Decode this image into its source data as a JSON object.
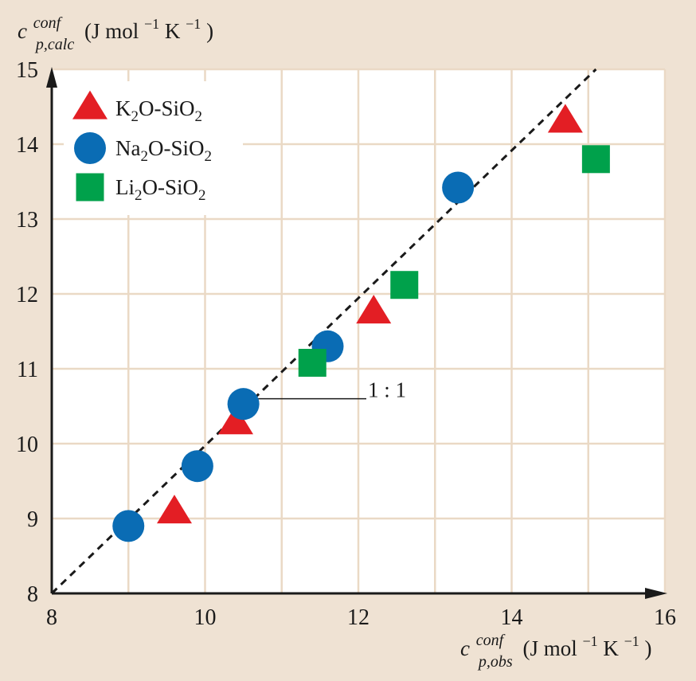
{
  "chart_data": {
    "type": "scatter",
    "xlabel": {
      "base": "c",
      "sup": "conf",
      "sub": "p,obs",
      "units": "(J mol",
      "exp1": "−1",
      "mid": " K",
      "exp2": "−1",
      "close": ")"
    },
    "ylabel": {
      "base": "c",
      "sup": "conf",
      "sub": "p,calc",
      "units": "(J mol",
      "exp1": "−1",
      "mid": " K",
      "exp2": "−1",
      "close": ")"
    },
    "xlim": [
      8,
      16
    ],
    "ylim": [
      8,
      15
    ],
    "x_ticks": [
      "8",
      "10",
      "12",
      "14",
      "16"
    ],
    "y_ticks": [
      "8",
      "9",
      "10",
      "11",
      "12",
      "13",
      "14",
      "15"
    ],
    "grid": true,
    "legend_position": "top-left",
    "reference_line": {
      "label": "1 : 1",
      "from": [
        8,
        8
      ],
      "to": [
        15.1,
        15
      ]
    },
    "series": [
      {
        "name": "K2O-SiO2",
        "legend": {
          "pre": "K",
          "sub": "2",
          "mid": "O-SiO",
          "sub2": "2"
        },
        "marker": "triangle",
        "color": "#e31e24",
        "points": [
          [
            9.6,
            9.08
          ],
          [
            10.4,
            10.27
          ],
          [
            12.2,
            11.75
          ],
          [
            14.7,
            14.3
          ]
        ]
      },
      {
        "name": "Na2O-SiO2",
        "legend": {
          "pre": "Na",
          "sub": "2",
          "mid": "O-SiO",
          "sub2": "2"
        },
        "marker": "circle",
        "color": "#0a6cb4",
        "points": [
          [
            9.0,
            8.9
          ],
          [
            9.9,
            9.7
          ],
          [
            10.5,
            10.53
          ],
          [
            11.6,
            11.3
          ],
          [
            13.3,
            13.42
          ]
        ]
      },
      {
        "name": "Li2O-SiO2",
        "legend": {
          "pre": "Li",
          "sub": "2",
          "mid": "O-SiO",
          "sub2": "2"
        },
        "marker": "square",
        "color": "#00a14b",
        "points": [
          [
            11.4,
            11.08
          ],
          [
            12.6,
            12.12
          ],
          [
            15.1,
            13.8
          ]
        ]
      }
    ]
  }
}
